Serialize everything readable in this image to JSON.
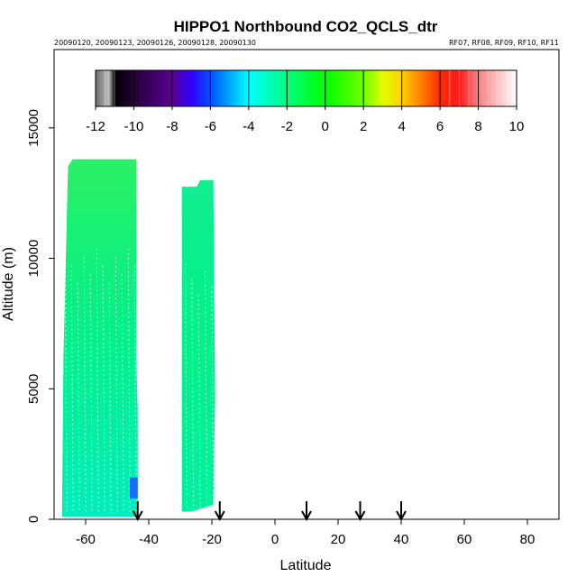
{
  "chart_data": {
    "type": "heatmap",
    "title": "HIPPO1 Northbound CO2_QCLS_dtr",
    "subtitle_left": "20090120, 20090123, 20090126, 20090128, 20090130",
    "subtitle_right": "RF07, RF08, RF09, RF10, RF11",
    "xlabel": "Latitude",
    "ylabel": "Altitude (m)",
    "xlim": [
      -70,
      90
    ],
    "ylim": [
      0,
      18000
    ],
    "x_ticks": [
      "-60",
      "-40",
      "-20",
      "0",
      "20",
      "40",
      "60",
      "80"
    ],
    "y_ticks": [
      "0",
      "5000",
      "10000",
      "15000"
    ],
    "colorbar": {
      "range": [
        -12,
        10
      ],
      "tick_labels": [
        "-12",
        "-10",
        "-8",
        "-6",
        "-4",
        "-2",
        "0",
        "2",
        "4",
        "6",
        "8",
        "10"
      ],
      "colors": [
        "#7f7f7f",
        "#000000",
        "#3a004f",
        "#5a0090",
        "#2a00ff",
        "#0070ff",
        "#00ffff",
        "#00ff7a",
        "#00ff00",
        "#a0ff00",
        "#ffff00",
        "#ffa000",
        "#ff4000",
        "#ff0000",
        "#ff8080",
        "#ffffff"
      ]
    },
    "profile_regions": [
      {
        "lat_range": [
          -67.5,
          -43.5
        ],
        "alt_range": [
          100,
          13800
        ],
        "color_low": "#00eebb",
        "color_mid": "#00f08a",
        "color_high": "#2af065",
        "values_approx": {
          "low_altitude": -3.5,
          "mid_altitude": -2.0,
          "high_altitude": -1.0
        }
      },
      {
        "lat_range": [
          -29.5,
          -19
        ],
        "alt_range": [
          300,
          13000
        ],
        "color_low": "#00f0a0",
        "color_mid": "#00f08a",
        "color_high": "#10ee90",
        "values_approx": {
          "low_altitude": -2.5,
          "mid_altitude": -2.0,
          "high_altitude": -2.5
        }
      }
    ],
    "low_value_patch": {
      "lat_range": [
        -46,
        -43.5
      ],
      "alt_range": [
        800,
        1600
      ],
      "value_approx": -6,
      "color": "#1a6cff"
    },
    "arrows_latitudes": [
      -43.5,
      -17.5,
      10,
      27,
      40
    ],
    "grid": false
  }
}
